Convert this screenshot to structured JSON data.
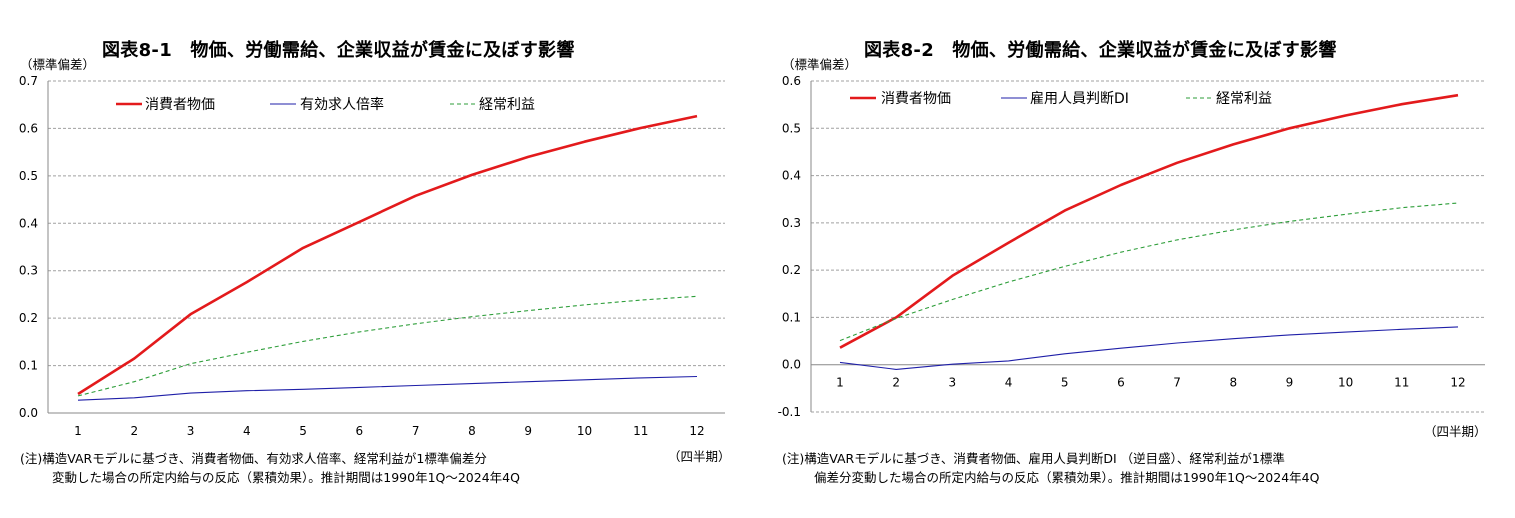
{
  "chart_data": [
    {
      "type": "line",
      "title": "図表8-1　物価、労働需給、企業収益が賃金に及ぼす影響",
      "ylabel": "（標準偏差）",
      "xlabel": "（四半期）",
      "x": [
        1,
        2,
        3,
        4,
        5,
        6,
        7,
        8,
        9,
        10,
        11,
        12
      ],
      "ylim": [
        0,
        0.7
      ],
      "yticks": [
        "0.0",
        "0.1",
        "0.2",
        "0.3",
        "0.4",
        "0.5",
        "0.6",
        "0.7"
      ],
      "grid": true,
      "legend_position": "top-left",
      "series": [
        {
          "name": "消費者物価",
          "color": "#e31a1c",
          "style": "solid-thick",
          "values": [
            0.04,
            0.115,
            0.208,
            0.276,
            0.348,
            0.403,
            0.458,
            0.502,
            0.54,
            0.572,
            0.601,
            0.626
          ]
        },
        {
          "name": "有効求人倍率",
          "color": "#1f1fa8",
          "style": "solid-thin",
          "values": [
            0.027,
            0.032,
            0.042,
            0.047,
            0.05,
            0.054,
            0.058,
            0.062,
            0.066,
            0.07,
            0.074,
            0.077
          ]
        },
        {
          "name": "経常利益",
          "color": "#2e9e3a",
          "style": "dashed",
          "values": [
            0.036,
            0.066,
            0.104,
            0.128,
            0.151,
            0.171,
            0.188,
            0.203,
            0.216,
            0.228,
            0.238,
            0.246
          ]
        }
      ],
      "notes": [
        "(注)構造VARモデルに基づき、消費者物価、有効求人倍率、経常利益が1標準偏差分",
        "変動した場合の所定内給与の反応（累積効果）。推計期間は1990年1Q～2024年4Q"
      ]
    },
    {
      "type": "line",
      "title": "図表8-2　物価、労働需給、企業収益が賃金に及ぼす影響",
      "ylabel": "（標準偏差）",
      "xlabel": "（四半期）",
      "x": [
        1,
        2,
        3,
        4,
        5,
        6,
        7,
        8,
        9,
        10,
        11,
        12
      ],
      "ylim": [
        -0.1,
        0.6
      ],
      "yticks": [
        "-0.1",
        "0.0",
        "0.1",
        "0.2",
        "0.3",
        "0.4",
        "0.5",
        "0.6"
      ],
      "grid": true,
      "legend_position": "top-left",
      "series": [
        {
          "name": "消費者物価",
          "color": "#e31a1c",
          "style": "solid-thick",
          "values": [
            0.036,
            0.1,
            0.188,
            0.258,
            0.326,
            0.38,
            0.427,
            0.466,
            0.5,
            0.527,
            0.551,
            0.57
          ]
        },
        {
          "name": "雇用人員判断DI",
          "color": "#1f1fa8",
          "style": "solid-thin",
          "values": [
            0.005,
            -0.01,
            0.001,
            0.008,
            0.023,
            0.035,
            0.046,
            0.055,
            0.063,
            0.069,
            0.075,
            0.08
          ]
        },
        {
          "name": "経常利益",
          "color": "#2e9e3a",
          "style": "dashed",
          "values": [
            0.051,
            0.098,
            0.138,
            0.175,
            0.208,
            0.238,
            0.264,
            0.285,
            0.303,
            0.318,
            0.332,
            0.342
          ]
        }
      ],
      "notes": [
        "(注)構造VARモデルに基づき、消費者物価、雇用人員判断DI （逆目盛）、経常利益が1標準",
        "偏差分変動した場合の所定内給与の反応（累積効果）。推計期間は1990年1Q～2024年4Q"
      ]
    }
  ]
}
